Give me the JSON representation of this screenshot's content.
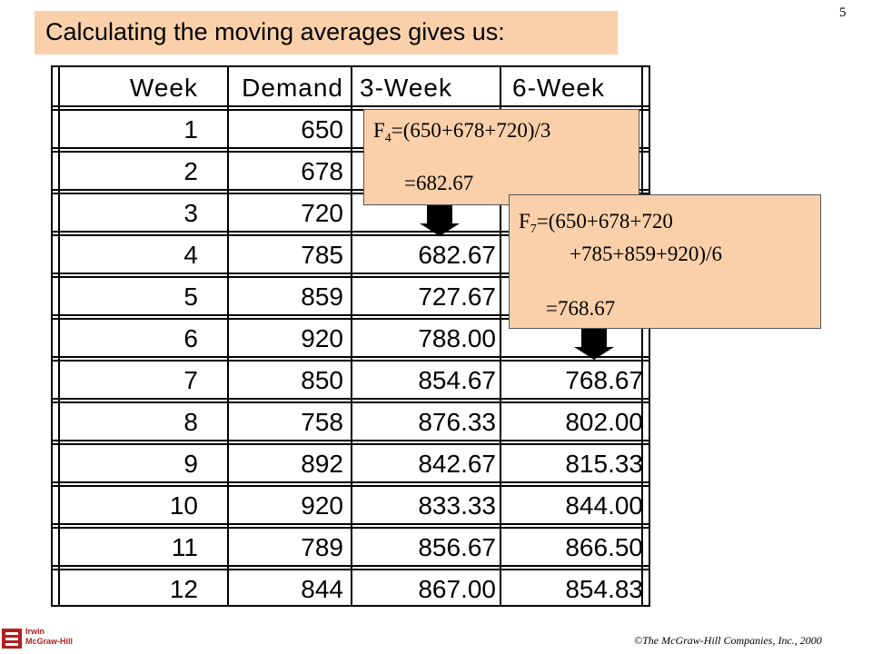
{
  "page_number": "5",
  "title": "Calculating the moving averages gives us:",
  "table": {
    "headers": [
      "Week",
      "Demand",
      "3-Week",
      "6-Week"
    ],
    "rows": [
      [
        "1",
        "650",
        "",
        ""
      ],
      [
        "2",
        "678",
        "",
        ""
      ],
      [
        "3",
        "720",
        "",
        ""
      ],
      [
        "4",
        "785",
        "682.67",
        ""
      ],
      [
        "5",
        "859",
        "727.67",
        ""
      ],
      [
        "6",
        "920",
        "788.00",
        ""
      ],
      [
        "7",
        "850",
        "854.67",
        "768.67"
      ],
      [
        "8",
        "758",
        "876.33",
        "802.00"
      ],
      [
        "9",
        "892",
        "842.67",
        "815.33"
      ],
      [
        "10",
        "920",
        "833.33",
        "844.00"
      ],
      [
        "11",
        "789",
        "856.67",
        "866.50"
      ],
      [
        "12",
        "844",
        "867.00",
        "854.83"
      ]
    ]
  },
  "callout1": {
    "f": "F",
    "sub": "4",
    "expr": "=(650+678+720)/3",
    "result": "=682.67"
  },
  "callout2": {
    "f": "F",
    "sub": "7",
    "expr_line1": "=(650+678+720",
    "expr_line2": "+785+859+920)/6",
    "result": "=768.67"
  },
  "footer": "©The McGraw-Hill Companies, Inc., 2000",
  "logo": {
    "line1": "Irwin",
    "line2": "McGraw-Hill",
    "color": "#b01e1e"
  },
  "colors": {
    "callout_fill": "#fad0aa"
  }
}
